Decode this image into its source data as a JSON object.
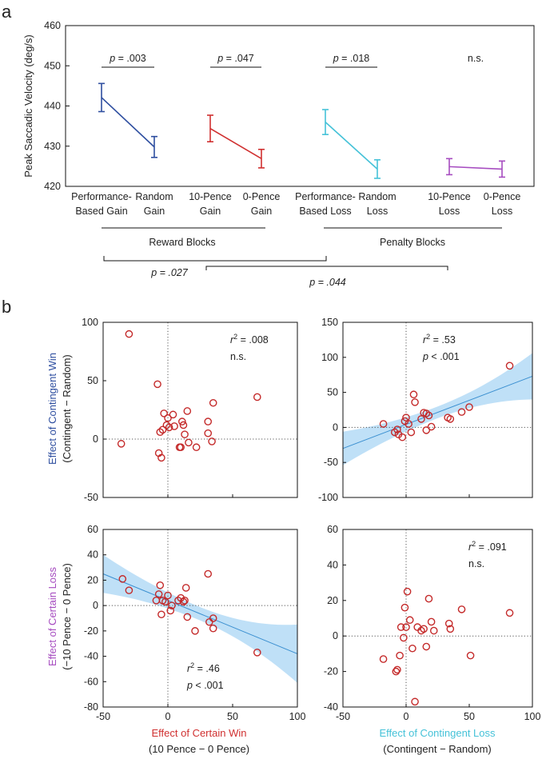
{
  "colors": {
    "rewardGain": "#2f4fa0",
    "fixedGain": "#d03030",
    "penaltyLoss": "#45c2d8",
    "fixedLoss": "#a64cc0",
    "points": "#c42a2a",
    "fit": "#3a8fd0",
    "band": "#a9d5f4"
  },
  "panel_a": {
    "letter": "a",
    "reward_blocks_label": "Reward Blocks",
    "penalty_blocks_label": "Penalty Blocks",
    "cross_p1": "p = .027",
    "cross_p2": "p = .044"
  },
  "panel_b": {
    "letter": "b",
    "row1_ylabel_colored": "Effect of Contingent Win",
    "row1_ylabel_sub": "(Contingent − Random)",
    "row2_ylabel_colored": "Effect of Certain Loss",
    "row2_ylabel_sub": "(−10 Pence − 0 Pence)",
    "col1_xlabel_colored": "Effect of Certain Win",
    "col1_xlabel_sub": "(10 Pence − 0 Pence)",
    "col2_xlabel_colored": "Effect of Contingent Loss",
    "col2_xlabel_sub": "(Contingent − Random)"
  },
  "chart_data": [
    {
      "id": "a",
      "type": "line",
      "title": "",
      "ylabel": "Peak Saccadic Velocity (deg/s)",
      "ylim": [
        420,
        460
      ],
      "yticks": [
        420,
        430,
        440,
        450,
        460
      ],
      "pairs": [
        {
          "color": "rewardGain",
          "labels": [
            [
              "Performance-",
              "Based Gain"
            ],
            [
              "Random",
              "Gain"
            ]
          ],
          "values": [
            442.1,
            429.8
          ],
          "errors": [
            3.5,
            2.6
          ],
          "annotation": "p = .003"
        },
        {
          "color": "fixedGain",
          "labels": [
            [
              "10-Pence",
              "Gain"
            ],
            [
              "0-Pence",
              "Gain"
            ]
          ],
          "values": [
            434.4,
            426.9
          ],
          "errors": [
            3.3,
            2.3
          ],
          "annotation": "p = .047"
        },
        {
          "color": "penaltyLoss",
          "labels": [
            [
              "Performance-",
              "Based Loss"
            ],
            [
              "Random",
              "Loss"
            ]
          ],
          "values": [
            436.0,
            424.3
          ],
          "errors": [
            3.1,
            2.3
          ],
          "annotation": "p = .018"
        },
        {
          "color": "fixedLoss",
          "labels": [
            [
              "10-Pence",
              "Loss"
            ],
            [
              "0-Pence",
              "Loss"
            ]
          ],
          "values": [
            424.9,
            424.3
          ],
          "errors": [
            2.0,
            2.0
          ],
          "annotation": "n.s."
        }
      ]
    },
    {
      "id": "b1",
      "type": "scatter",
      "xlim": [
        -50,
        100
      ],
      "ylim": [
        -50,
        100
      ],
      "xticks": [
        -50,
        0,
        50,
        100
      ],
      "yticks": [
        -50,
        0,
        50,
        100
      ],
      "stat_r2": ".008",
      "stat_p": "n.s.",
      "fit": null,
      "points": [
        [
          -36,
          -4
        ],
        [
          -30,
          90
        ],
        [
          -8,
          47
        ],
        [
          -7,
          -12
        ],
        [
          -6,
          6
        ],
        [
          -5,
          -16
        ],
        [
          -4,
          8
        ],
        [
          -3,
          22
        ],
        [
          -1,
          12
        ],
        [
          0,
          18
        ],
        [
          1,
          10
        ],
        [
          4,
          21
        ],
        [
          5,
          11
        ],
        [
          9,
          -7
        ],
        [
          10,
          -7
        ],
        [
          11,
          15
        ],
        [
          12,
          12
        ],
        [
          13,
          4
        ],
        [
          15,
          24
        ],
        [
          16,
          -3
        ],
        [
          22,
          -7
        ],
        [
          31,
          15
        ],
        [
          31,
          5
        ],
        [
          34,
          -2
        ],
        [
          35,
          31
        ],
        [
          69,
          36
        ]
      ]
    },
    {
      "id": "b2",
      "type": "scatter",
      "xlim": [
        -50,
        100
      ],
      "ylim": [
        -100,
        150
      ],
      "xticks": [
        -50,
        0,
        50,
        100
      ],
      "yticks": [
        -100,
        -50,
        0,
        50,
        100,
        150
      ],
      "stat_r2": ".53",
      "stat_p": "< .001",
      "fit": {
        "x": [
          -50,
          100
        ],
        "y": [
          -30,
          73
        ],
        "band_half_at_ends": [
          24,
          33
        ]
      },
      "points": [
        [
          -18,
          5
        ],
        [
          -9,
          -7
        ],
        [
          -7,
          -3
        ],
        [
          -6,
          -10
        ],
        [
          -3,
          -14
        ],
        [
          -1,
          9
        ],
        [
          0,
          14
        ],
        [
          2,
          5
        ],
        [
          4,
          -7
        ],
        [
          6,
          47
        ],
        [
          7,
          36
        ],
        [
          12,
          12
        ],
        [
          14,
          21
        ],
        [
          16,
          20
        ],
        [
          16,
          -4
        ],
        [
          18,
          17
        ],
        [
          20,
          1
        ],
        [
          33,
          14
        ],
        [
          35,
          12
        ],
        [
          44,
          22
        ],
        [
          50,
          29
        ],
        [
          82,
          88
        ]
      ]
    },
    {
      "id": "b3",
      "type": "scatter",
      "xlim": [
        -50,
        100
      ],
      "ylim": [
        -80,
        60
      ],
      "xticks": [
        -50,
        0,
        50,
        100
      ],
      "yticks": [
        -80,
        -60,
        -40,
        -20,
        0,
        20,
        40,
        60
      ],
      "stat_r2": ".46",
      "stat_p": "< .001",
      "fit": {
        "x": [
          -50,
          100
        ],
        "y": [
          25,
          -38
        ],
        "band_half_at_ends": [
          15,
          23
        ]
      },
      "points": [
        [
          -35,
          21
        ],
        [
          -30,
          12
        ],
        [
          -9,
          4
        ],
        [
          -7,
          9
        ],
        [
          -6,
          16
        ],
        [
          -5,
          -7
        ],
        [
          -4,
          4
        ],
        [
          -2,
          3
        ],
        [
          0,
          8
        ],
        [
          2,
          -4
        ],
        [
          3,
          0
        ],
        [
          8,
          4
        ],
        [
          10,
          6
        ],
        [
          12,
          3
        ],
        [
          13,
          4
        ],
        [
          14,
          14
        ],
        [
          15,
          -9
        ],
        [
          21,
          -20
        ],
        [
          31,
          25
        ],
        [
          32,
          -13
        ],
        [
          35,
          -10
        ],
        [
          35,
          -18
        ],
        [
          69,
          -37
        ]
      ]
    },
    {
      "id": "b4",
      "type": "scatter",
      "xlim": [
        -50,
        100
      ],
      "ylim": [
        -40,
        60
      ],
      "xticks": [
        -50,
        0,
        50,
        100
      ],
      "yticks": [
        -40,
        -20,
        0,
        20,
        40,
        60
      ],
      "stat_r2": ".091",
      "stat_p": "n.s.",
      "fit": null,
      "points": [
        [
          -18,
          -13
        ],
        [
          -8,
          -20
        ],
        [
          -7,
          -19
        ],
        [
          -5,
          -11
        ],
        [
          -4,
          5
        ],
        [
          -2,
          -1
        ],
        [
          -1,
          16
        ],
        [
          0,
          5
        ],
        [
          1,
          25
        ],
        [
          3,
          9
        ],
        [
          5,
          -7
        ],
        [
          7,
          -37
        ],
        [
          9,
          5
        ],
        [
          12,
          3
        ],
        [
          14,
          4
        ],
        [
          16,
          -6
        ],
        [
          18,
          21
        ],
        [
          20,
          8
        ],
        [
          22,
          3
        ],
        [
          34,
          7
        ],
        [
          35,
          4
        ],
        [
          44,
          15
        ],
        [
          51,
          -11
        ],
        [
          82,
          13
        ]
      ]
    }
  ]
}
